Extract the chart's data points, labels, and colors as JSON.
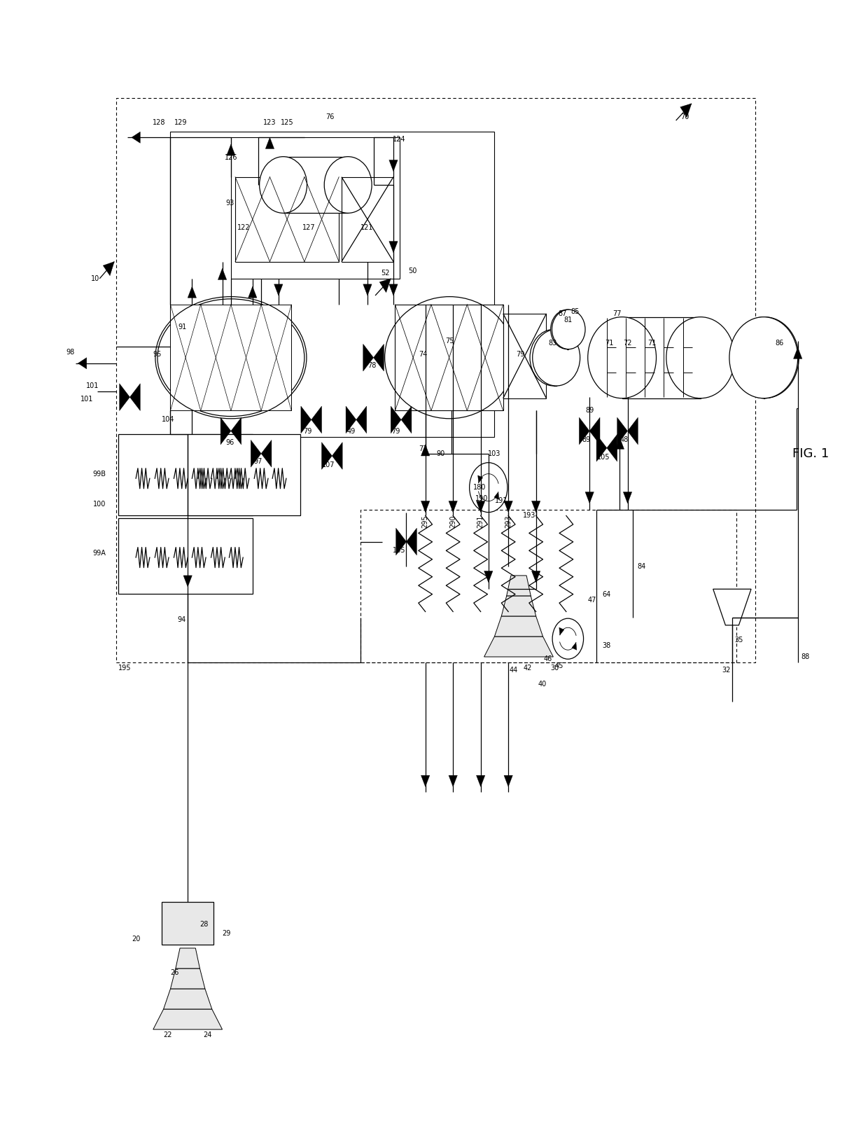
{
  "bg": "#ffffff",
  "lc": "#000000",
  "fig_label": "FIG. 1"
}
